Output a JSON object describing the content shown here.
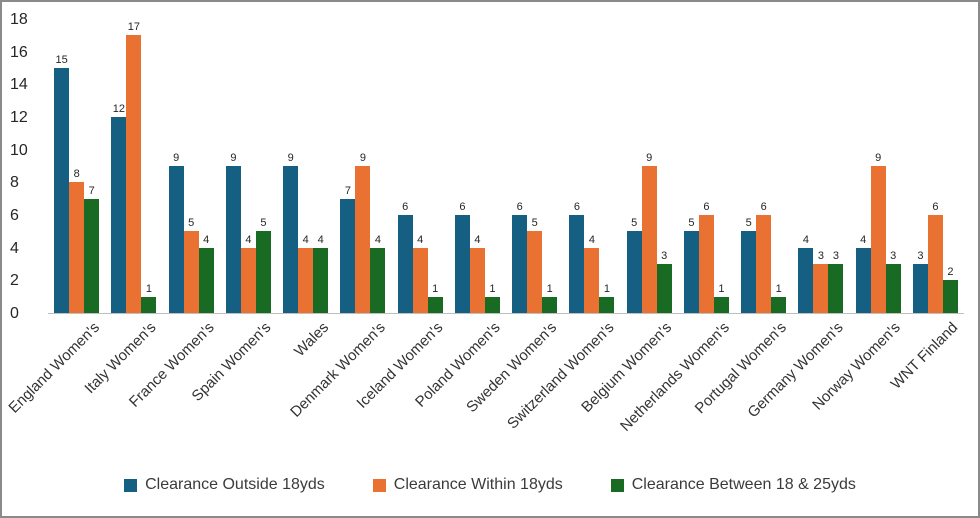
{
  "chart_data": {
    "type": "bar",
    "title": "",
    "xlabel": "",
    "ylabel": "",
    "ylim": [
      0,
      18
    ],
    "yticks": [
      0,
      2,
      4,
      6,
      8,
      10,
      12,
      14,
      16,
      18
    ],
    "grid": false,
    "legend_position": "bottom",
    "data_labels": true,
    "categories": [
      "England Women's",
      "Italy Women's",
      "France Women's",
      "Spain Women's",
      "Wales",
      "Denmark Women's",
      "Iceland Women's",
      "Poland Women's",
      "Sweden Women's",
      "Switzerland Women's",
      "Belgium Women's",
      "Netherlands Women's",
      "Portugal Women's",
      "Germany Women's",
      "Norway Women's",
      "WNT Finland"
    ],
    "series": [
      {
        "name": "Clearance Outside 18yds",
        "color": "#156082",
        "values": [
          15,
          12,
          9,
          9,
          9,
          7,
          6,
          6,
          6,
          6,
          5,
          5,
          5,
          4,
          4,
          3
        ]
      },
      {
        "name": "Clearance Within 18yds",
        "color": "#E97132",
        "values": [
          8,
          17,
          5,
          4,
          4,
          9,
          4,
          4,
          5,
          4,
          9,
          6,
          6,
          3,
          9,
          6
        ]
      },
      {
        "name": "Clearance Between 18 & 25yds",
        "color": "#196B24",
        "values": [
          7,
          1,
          4,
          5,
          4,
          4,
          1,
          1,
          1,
          1,
          3,
          1,
          1,
          3,
          3,
          2
        ]
      }
    ]
  }
}
